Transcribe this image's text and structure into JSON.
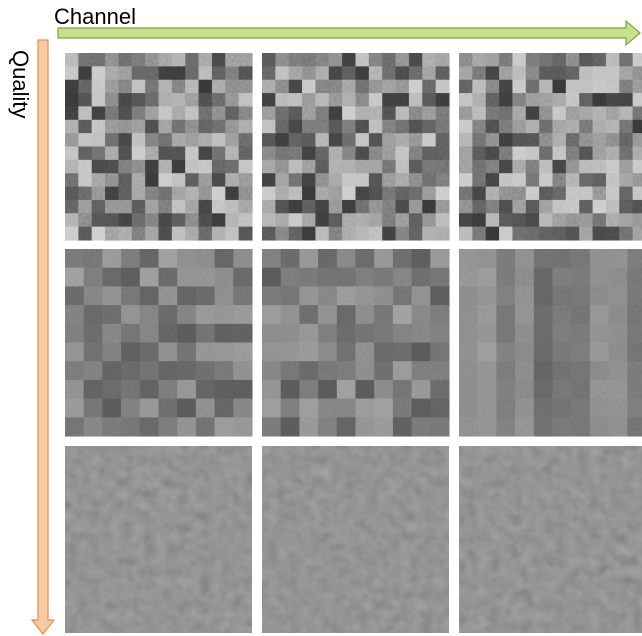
{
  "labels": {
    "x_axis": "Channel",
    "y_axis": "Quality"
  }
}
